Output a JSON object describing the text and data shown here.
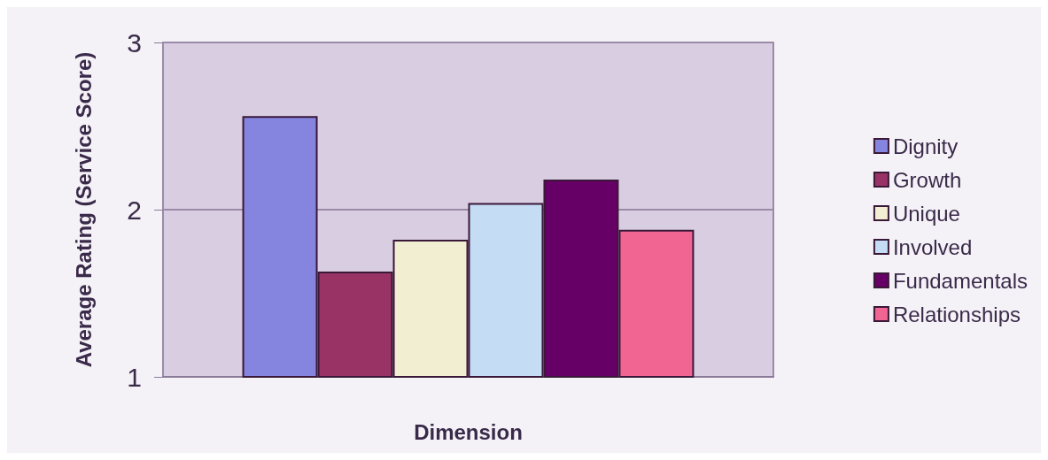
{
  "chart_data": {
    "type": "bar",
    "xlabel": "Dimension",
    "ylabel": "Average Rating (Service Score)",
    "categories": [
      null
    ],
    "series": [
      {
        "name": "Dignity",
        "color": "#8585e0",
        "values": [
          2.56
        ]
      },
      {
        "name": "Growth",
        "color": "#993366",
        "values": [
          1.63
        ]
      },
      {
        "name": "Unique",
        "color": "#f2eed2",
        "values": [
          1.82
        ]
      },
      {
        "name": "Involved",
        "color": "#c4dcf4",
        "values": [
          2.04
        ]
      },
      {
        "name": "Fundamentals",
        "color": "#660066",
        "values": [
          2.18
        ]
      },
      {
        "name": "Relationships",
        "color": "#f06592",
        "values": [
          1.88
        ]
      }
    ],
    "ylim": [
      1,
      3
    ],
    "yticks": [
      1,
      2,
      3
    ],
    "grid": "y",
    "legend": "right"
  }
}
